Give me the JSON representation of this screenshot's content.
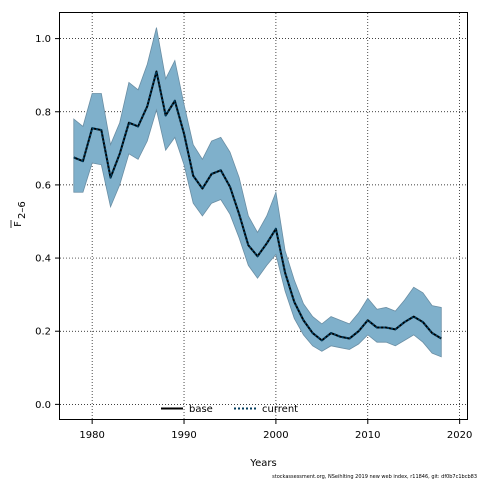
{
  "chart_data": {
    "type": "line",
    "xlabel": "Years",
    "ylabel_main": "F",
    "ylabel_sub": "2–6",
    "xlim": [
      1976.5,
      2020.8
    ],
    "ylim": [
      -0.04,
      1.07
    ],
    "x_ticks": [
      1980,
      1990,
      2000,
      2010,
      2020
    ],
    "y_ticks": [
      0.0,
      0.2,
      0.4,
      0.6,
      0.8,
      1.0
    ],
    "y_tick_labels": [
      "0.0",
      "0.2",
      "0.4",
      "0.6",
      "0.8",
      "1.0"
    ],
    "grid": true,
    "legend_position": "bottom",
    "x": [
      1978,
      1979,
      1980,
      1981,
      1982,
      1983,
      1984,
      1985,
      1986,
      1987,
      1988,
      1989,
      1990,
      1991,
      1992,
      1993,
      1994,
      1995,
      1996,
      1997,
      1998,
      1999,
      2000,
      2001,
      2002,
      2003,
      2004,
      2005,
      2006,
      2007,
      2008,
      2009,
      2010,
      2011,
      2012,
      2013,
      2014,
      2015,
      2016,
      2017,
      2018
    ],
    "series": [
      {
        "name": "base",
        "color": "#000000",
        "style": "solid",
        "values": [
          0.675,
          0.665,
          0.755,
          0.75,
          0.62,
          0.685,
          0.77,
          0.76,
          0.815,
          0.91,
          0.79,
          0.83,
          0.74,
          0.625,
          0.59,
          0.63,
          0.64,
          0.595,
          0.52,
          0.435,
          0.405,
          0.44,
          0.48,
          0.36,
          0.28,
          0.23,
          0.195,
          0.175,
          0.195,
          0.185,
          0.18,
          0.2,
          0.23,
          0.21,
          0.21,
          0.205,
          0.225,
          0.24,
          0.225,
          0.195,
          0.18
        ]
      },
      {
        "name": "current",
        "color": "#003b5c",
        "style": "dotted",
        "values": [
          0.675,
          0.665,
          0.755,
          0.75,
          0.62,
          0.685,
          0.77,
          0.76,
          0.815,
          0.91,
          0.79,
          0.83,
          0.74,
          0.625,
          0.59,
          0.63,
          0.64,
          0.595,
          0.52,
          0.435,
          0.405,
          0.44,
          0.48,
          0.36,
          0.28,
          0.23,
          0.195,
          0.175,
          0.195,
          0.185,
          0.18,
          0.2,
          0.23,
          0.21,
          0.21,
          0.205,
          0.225,
          0.24,
          0.225,
          0.195,
          0.18
        ]
      }
    ],
    "band": {
      "color": "#7fb0cb",
      "edge": "#6a8ea4",
      "lower": [
        0.58,
        0.58,
        0.66,
        0.655,
        0.54,
        0.6,
        0.685,
        0.67,
        0.72,
        0.805,
        0.695,
        0.73,
        0.655,
        0.55,
        0.515,
        0.55,
        0.56,
        0.52,
        0.455,
        0.38,
        0.345,
        0.38,
        0.41,
        0.31,
        0.235,
        0.19,
        0.16,
        0.145,
        0.16,
        0.155,
        0.15,
        0.165,
        0.19,
        0.17,
        0.17,
        0.16,
        0.175,
        0.19,
        0.17,
        0.14,
        0.13
      ],
      "upper": [
        0.78,
        0.76,
        0.85,
        0.85,
        0.71,
        0.77,
        0.88,
        0.86,
        0.93,
        1.03,
        0.89,
        0.94,
        0.82,
        0.71,
        0.67,
        0.72,
        0.73,
        0.69,
        0.62,
        0.515,
        0.47,
        0.515,
        0.58,
        0.42,
        0.34,
        0.275,
        0.24,
        0.22,
        0.24,
        0.23,
        0.22,
        0.25,
        0.29,
        0.26,
        0.265,
        0.255,
        0.285,
        0.32,
        0.305,
        0.27,
        0.265
      ]
    }
  },
  "watermark": "stockassessment.org, NSeihlting 2019 new web index, r11846, git: df0b7c1bcb83"
}
